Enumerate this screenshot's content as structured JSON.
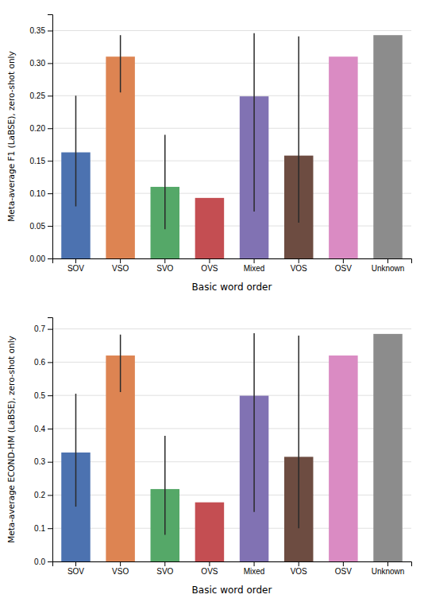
{
  "chart_data": [
    {
      "type": "bar",
      "categories": [
        "SOV",
        "VSO",
        "SVO",
        "OVS",
        "Mixed",
        "VOS",
        "OSV",
        "Unknown"
      ],
      "values": [
        0.163,
        0.31,
        0.11,
        0.093,
        0.249,
        0.158,
        0.31,
        0.343
      ],
      "yerr_low": [
        0.083,
        0.055,
        0.065,
        0.0,
        0.177,
        0.103,
        0.0,
        0.0
      ],
      "yerr_high": [
        0.087,
        0.033,
        0.08,
        0.0,
        0.097,
        0.183,
        0.0,
        0.0
      ],
      "colors": [
        "#4c72b0",
        "#dd8452",
        "#55a868",
        "#c44e52",
        "#8172b3",
        "#6d4c41",
        "#da8bc3",
        "#8c8c8c"
      ],
      "xlabel": "Basic word order",
      "ylabel": "Meta-average F1 (LaBSE), zero-shot only",
      "ylim": [
        0.0,
        0.375
      ],
      "yticks": [
        {
          "value": 0.0,
          "label": "0.00"
        },
        0.05,
        {
          "value": 0.1,
          "label": "0.10"
        },
        0.15,
        {
          "value": 0.2,
          "label": "0.20"
        },
        0.25,
        {
          "value": 0.3,
          "label": "0.30"
        },
        0.35
      ],
      "grid": true
    },
    {
      "type": "bar",
      "categories": [
        "SOV",
        "VSO",
        "SVO",
        "OVS",
        "Mixed",
        "VOS",
        "OSV",
        "Unknown"
      ],
      "values": [
        0.328,
        0.62,
        0.218,
        0.178,
        0.499,
        0.315,
        0.62,
        0.685
      ],
      "yerr_low": [
        0.163,
        0.11,
        0.138,
        0.0,
        0.35,
        0.215,
        0.0,
        0.0
      ],
      "yerr_high": [
        0.177,
        0.063,
        0.16,
        0.0,
        0.188,
        0.365,
        0.0,
        0.0
      ],
      "colors": [
        "#4c72b0",
        "#dd8452",
        "#55a868",
        "#c44e52",
        "#8172b3",
        "#6d4c41",
        "#da8bc3",
        "#8c8c8c"
      ],
      "xlabel": "Basic word order",
      "ylabel": "Meta-average ECOND-HM (LaBSE), zero-shot only",
      "ylim": [
        0.0,
        0.735
      ],
      "yticks": [
        {
          "value": 0.0,
          "label": "0.0"
        },
        0.1,
        0.2,
        0.3,
        0.4,
        0.5,
        0.6,
        0.7
      ],
      "grid": true
    }
  ]
}
